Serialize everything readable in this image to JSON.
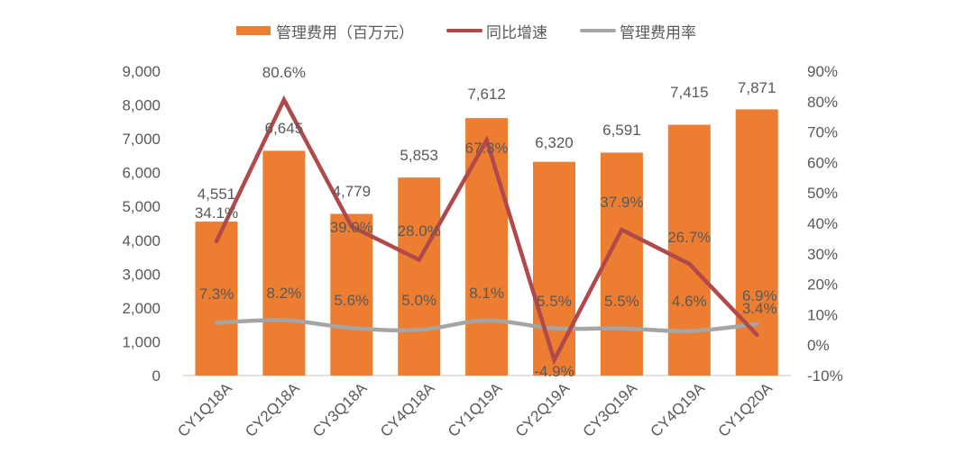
{
  "legend": {
    "bar_label": "管理费用（百万元）",
    "growth_label": "同比增速",
    "ratio_label": "管理费用率"
  },
  "colors": {
    "bar": "#ED7D31",
    "growth": "#B04A4A",
    "ratio": "#A5A5A5",
    "text": "#595959",
    "axis": "#D9D9D9"
  },
  "chart_data": {
    "type": "bar",
    "title": "",
    "categories": [
      "CY1Q18A",
      "CY2Q18A",
      "CY3Q18A",
      "CY4Q18A",
      "CY1Q19A",
      "CY2Q19A",
      "CY3Q19A",
      "CY4Q19A",
      "CY1Q20A"
    ],
    "series": [
      {
        "name": "管理费用（百万元）",
        "type": "bar",
        "axis": "left",
        "values": [
          4551,
          6645,
          4779,
          5853,
          7612,
          6320,
          6591,
          7415,
          7871
        ],
        "labels": [
          "4,551",
          "6,645",
          "4,779",
          "5,853",
          "7,612",
          "6,320",
          "6,591",
          "7,415",
          "7,871"
        ]
      },
      {
        "name": "同比增速",
        "type": "line",
        "axis": "right",
        "values": [
          34.1,
          80.6,
          39.0,
          28.0,
          67.3,
          -4.9,
          37.9,
          26.7,
          3.4
        ],
        "labels": [
          "34.1%",
          "80.6%",
          "39.0%",
          "28.0%",
          "67.3%",
          "-4.9%",
          "37.9%",
          "26.7%",
          "3.4%"
        ]
      },
      {
        "name": "管理费用率",
        "type": "line",
        "axis": "right",
        "smooth": true,
        "values": [
          7.3,
          8.2,
          5.6,
          5.0,
          8.1,
          5.5,
          5.5,
          4.6,
          6.9
        ],
        "labels": [
          "7.3%",
          "8.2%",
          "5.6%",
          "5.0%",
          "8.1%",
          "5.5%",
          "5.5%",
          "4.6%",
          "6.9%"
        ]
      }
    ],
    "left_axis": {
      "ylim": [
        0,
        9000
      ],
      "ticks": [
        "0",
        "1,000",
        "2,000",
        "3,000",
        "4,000",
        "5,000",
        "6,000",
        "7,000",
        "8,000",
        "9,000"
      ]
    },
    "right_axis": {
      "ylim": [
        -10,
        90
      ],
      "ticks": [
        "-10%",
        "0%",
        "10%",
        "20%",
        "30%",
        "40%",
        "50%",
        "60%",
        "70%",
        "80%",
        "90%"
      ]
    },
    "xlabel": "",
    "ylabel": "",
    "grid": false,
    "legend_position": "top"
  }
}
